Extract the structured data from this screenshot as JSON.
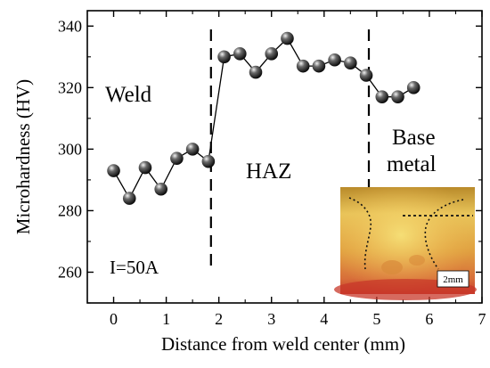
{
  "chart_data": {
    "type": "scatter",
    "xlabel": "Distance from weld center (mm)",
    "ylabel": "Microhardness (HV)",
    "xlim": [
      -0.5,
      7
    ],
    "ylim": [
      250,
      345
    ],
    "x_ticks": [
      "0",
      "1",
      "2",
      "3",
      "4",
      "5",
      "6",
      "7"
    ],
    "y_ticks": [
      "260",
      "280",
      "300",
      "320",
      "340"
    ],
    "series": [
      {
        "marker": "sphere",
        "line": "solid",
        "color": "#222222",
        "x": [
          0.0,
          0.3,
          0.6,
          0.9,
          1.2,
          1.5,
          1.8,
          2.1,
          2.4,
          2.7,
          3.0,
          3.3,
          3.6,
          3.9,
          4.2,
          4.5,
          4.8,
          5.1,
          5.4,
          5.7
        ],
        "y": [
          293,
          284,
          294,
          287,
          297,
          300,
          296,
          330,
          331,
          325,
          331,
          336,
          327,
          327,
          329,
          328,
          324,
          317,
          317,
          320
        ]
      }
    ],
    "vlines": [
      1.85,
      4.85
    ],
    "region_labels": {
      "weld": "Weld",
      "haz": "HAZ",
      "base_line1": "Base",
      "base_line2": "metal"
    },
    "current_label": "I=50A",
    "inset": {
      "description_label": "2mm"
    }
  }
}
